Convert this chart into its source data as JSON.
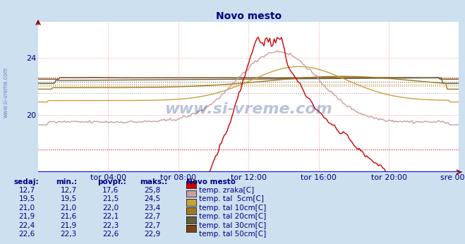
{
  "title": "Novo mesto",
  "title_color": "#000080",
  "bg_color": "#cde0f0",
  "plot_bg_color": "#ffffff",
  "grid_color": "#ff9999",
  "x_label_color": "#000080",
  "y_label_color": "#000080",
  "watermark_text": "www.si-vreme.com",
  "watermark_color": "#1a3a8f",
  "watermark_alpha": 0.3,
  "x_ticks_labels": [
    "tor 04:00",
    "tor 08:00",
    "tor 12:00",
    "tor 16:00",
    "tor 20:00",
    "sre 00:00"
  ],
  "ylim": [
    16.0,
    26.5
  ],
  "yticks": [
    20,
    24
  ],
  "n_points": 288,
  "series": {
    "temp_zraka": {
      "color": "#cc0000",
      "label": "temp. zraka[C]",
      "avg_val": 17.6
    },
    "temp_tal_5cm": {
      "color": "#c8a0a0",
      "label": "temp. tal  5cm[C]",
      "avg_val": 21.5
    },
    "temp_tal_10cm": {
      "color": "#c8a040",
      "label": "temp. tal 10cm[C]",
      "avg_val": 22.0
    },
    "temp_tal_20cm": {
      "color": "#a07820",
      "label": "temp. tal 20cm[C]",
      "avg_val": 22.1
    },
    "temp_tal_30cm": {
      "color": "#606040",
      "label": "temp. tal 30cm[C]",
      "avg_val": 22.3
    },
    "temp_tal_50cm": {
      "color": "#804010",
      "label": "temp. tal 50cm[C]",
      "avg_val": 22.6
    }
  },
  "table_headers": [
    "sedaj:",
    "min.:",
    "povpr.:",
    "maks.:"
  ],
  "table_rows": [
    [
      "12,7",
      "12,7",
      "17,6",
      "25,8"
    ],
    [
      "19,5",
      "19,5",
      "21,5",
      "24,5"
    ],
    [
      "21,0",
      "21,0",
      "22,0",
      "23,4"
    ],
    [
      "21,9",
      "21,6",
      "22,1",
      "22,7"
    ],
    [
      "22,4",
      "21,9",
      "22,3",
      "22,7"
    ],
    [
      "22,6",
      "22,3",
      "22,6",
      "22,9"
    ]
  ],
  "table_color": "#000080",
  "legend_title": "Novo mesto",
  "series_colors": [
    "#cc0000",
    "#c8a0a0",
    "#c8a040",
    "#a07820",
    "#606040",
    "#804010"
  ],
  "series_labels": [
    "temp. zraka[C]",
    "temp. tal  5cm[C]",
    "temp. tal 10cm[C]",
    "temp. tal 20cm[C]",
    "temp. tal 30cm[C]",
    "temp. tal 50cm[C]"
  ]
}
